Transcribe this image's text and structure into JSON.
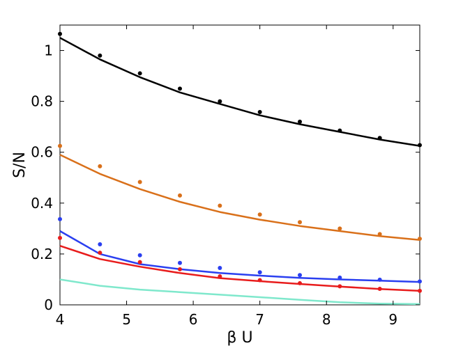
{
  "chart_data": {
    "type": "line",
    "title": "",
    "xlabel": "β U",
    "ylabel": "S/N",
    "xlim": [
      4,
      9.4
    ],
    "ylim": [
      0,
      1.1
    ],
    "xticks": [
      "4",
      "5",
      "6",
      "7",
      "8",
      "9"
    ],
    "yticks": [
      "0",
      "0.2",
      "0.4",
      "0.6",
      "0.8",
      "1"
    ],
    "grid": false,
    "legend": "none",
    "series": [
      {
        "color": "#000000",
        "line": {
          "x": [
            4,
            4.6,
            5.2,
            5.8,
            6.4,
            7.0,
            7.6,
            8.2,
            8.8,
            9.4
          ],
          "y": [
            1.05,
            0.965,
            0.895,
            0.835,
            0.79,
            0.745,
            0.71,
            0.68,
            0.65,
            0.625
          ]
        },
        "points": {
          "x": [
            4,
            4.6,
            5.2,
            5.8,
            6.4,
            7.0,
            7.6,
            8.2,
            8.8,
            9.4
          ],
          "y": [
            1.065,
            0.98,
            0.91,
            0.85,
            0.8,
            0.758,
            0.72,
            0.685,
            0.656,
            0.628
          ]
        }
      },
      {
        "color": "#d9701a",
        "line": {
          "x": [
            4,
            4.6,
            5.2,
            5.8,
            6.4,
            7.0,
            7.6,
            8.2,
            8.8,
            9.4
          ],
          "y": [
            0.59,
            0.515,
            0.455,
            0.405,
            0.365,
            0.335,
            0.31,
            0.29,
            0.27,
            0.255
          ]
        },
        "points": {
          "x": [
            4,
            4.6,
            5.2,
            5.8,
            6.4,
            7.0,
            7.6,
            8.2,
            8.8,
            9.4
          ],
          "y": [
            0.625,
            0.545,
            0.483,
            0.43,
            0.39,
            0.355,
            0.325,
            0.3,
            0.278,
            0.26
          ]
        }
      },
      {
        "color": "#2a3ff0",
        "line": {
          "x": [
            4,
            4.6,
            5.2,
            5.8,
            6.4,
            7.0,
            7.6,
            8.2,
            8.8,
            9.4
          ],
          "y": [
            0.29,
            0.2,
            0.16,
            0.14,
            0.125,
            0.115,
            0.106,
            0.1,
            0.095,
            0.09
          ]
        },
        "points": {
          "x": [
            4,
            4.6,
            5.2,
            5.8,
            6.4,
            7.0,
            7.6,
            8.2,
            8.8,
            9.4
          ],
          "y": [
            0.337,
            0.238,
            0.195,
            0.165,
            0.145,
            0.128,
            0.117,
            0.107,
            0.099,
            0.092
          ]
        }
      },
      {
        "color": "#e81c1c",
        "line": {
          "x": [
            4,
            4.6,
            5.2,
            5.8,
            6.4,
            7.0,
            7.6,
            8.2,
            8.8,
            9.4
          ],
          "y": [
            0.232,
            0.18,
            0.15,
            0.125,
            0.105,
            0.093,
            0.082,
            0.072,
            0.062,
            0.055
          ]
        },
        "points": {
          "x": [
            4,
            4.6,
            5.2,
            5.8,
            6.4,
            7.0,
            7.6,
            8.2,
            8.8,
            9.4
          ],
          "y": [
            0.263,
            0.205,
            0.168,
            0.14,
            0.112,
            0.097,
            0.085,
            0.073,
            0.063,
            0.055
          ]
        }
      },
      {
        "color": "#7fe8cc",
        "line": {
          "x": [
            4,
            4.6,
            5.2,
            5.8,
            6.4,
            7.0,
            7.6,
            8.2,
            8.8,
            9.4
          ],
          "y": [
            0.1,
            0.075,
            0.06,
            0.05,
            0.04,
            0.03,
            0.02,
            0.01,
            0.005,
            0.003
          ]
        },
        "points": {
          "x": [],
          "y": []
        }
      }
    ]
  }
}
